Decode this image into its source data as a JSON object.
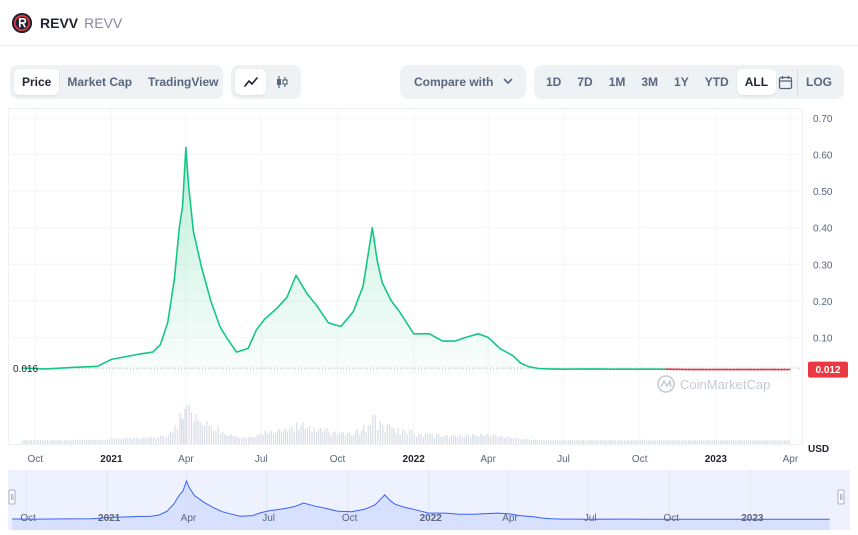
{
  "header": {
    "name": "REVV",
    "symbol": "REVV"
  },
  "tabs": [
    {
      "label": "Price",
      "active": true
    },
    {
      "label": "Market Cap",
      "active": false
    },
    {
      "label": "TradingView",
      "active": false
    }
  ],
  "chart_types": [
    {
      "icon": "line-chart-icon",
      "active": true
    },
    {
      "icon": "candlestick-icon",
      "active": false
    }
  ],
  "compare": {
    "label": "Compare with"
  },
  "ranges": [
    {
      "label": "1D",
      "active": false
    },
    {
      "label": "7D",
      "active": false
    },
    {
      "label": "1M",
      "active": false
    },
    {
      "label": "3M",
      "active": false
    },
    {
      "label": "1Y",
      "active": false
    },
    {
      "label": "YTD",
      "active": false
    },
    {
      "label": "ALL",
      "active": true
    }
  ],
  "log_label": "LOG",
  "colors": {
    "up": "#16c784",
    "down": "#ea3943",
    "nav": "#3861fb",
    "text": "#222531",
    "muted": "#58667e"
  },
  "chart_data": {
    "type": "line",
    "watermark": "CoinMarketCap",
    "y_ticks": [
      "0.70",
      "0.60",
      "0.50",
      "0.40",
      "0.30",
      "0.20",
      "0.10"
    ],
    "ylim": [
      0,
      0.7
    ],
    "x_ticks": [
      "Oct",
      "2021",
      "Apr",
      "Jul",
      "Oct",
      "2022",
      "Apr",
      "Jul",
      "Oct",
      "2023",
      "Apr"
    ],
    "x_ticks_bold": [
      "2021",
      "2022",
      "2023"
    ],
    "nav_ticks": [
      "Oct",
      "2021",
      "Apr",
      "Jul",
      "Oct",
      "2022",
      "Apr",
      "Jul",
      "Oct",
      "2023"
    ],
    "start_price_label": "0.016",
    "current_price_label": "0.012",
    "currency_label": "USD",
    "series": [
      {
        "x": [
          "2020-09",
          "2020-10",
          "2020-11",
          "2020-12",
          "2021-01-01",
          "2021-01-20",
          "2021-02-05",
          "2021-02-20",
          "2021-03-01",
          "2021-03-10",
          "2021-03-18",
          "2021-03-24",
          "2021-03-28",
          "2021-04-01",
          "2021-04-04",
          "2021-04-10",
          "2021-04-20",
          "2021-05-01",
          "2021-05-12",
          "2021-05-20",
          "2021-06-01",
          "2021-06-15",
          "2021-06-25",
          "2021-07-05",
          "2021-07-20",
          "2021-08-01",
          "2021-08-12",
          "2021-08-25",
          "2021-09-05",
          "2021-09-20",
          "2021-10-05",
          "2021-10-20",
          "2021-11-01",
          "2021-11-12",
          "2021-11-18",
          "2021-11-24",
          "2021-12-05",
          "2021-12-15",
          "2022-01-01",
          "2022-01-20",
          "2022-02-05",
          "2022-02-20",
          "2022-03-05",
          "2022-03-20",
          "2022-04-01",
          "2022-04-15",
          "2022-05-01",
          "2022-05-10",
          "2022-05-20",
          "2022-06-01",
          "2022-06-15",
          "2022-07-01",
          "2022-08-01",
          "2022-09-01",
          "2022-10-01",
          "2022-11-01",
          "2022-12-01",
          "2023-01-01",
          "2023-02-01",
          "2023-03-01",
          "2023-04-01"
        ],
        "values": [
          0.016,
          0.014,
          0.018,
          0.021,
          0.04,
          0.048,
          0.055,
          0.06,
          0.08,
          0.14,
          0.26,
          0.4,
          0.46,
          0.62,
          0.52,
          0.39,
          0.29,
          0.2,
          0.13,
          0.1,
          0.06,
          0.07,
          0.12,
          0.15,
          0.18,
          0.21,
          0.27,
          0.22,
          0.19,
          0.14,
          0.13,
          0.17,
          0.24,
          0.4,
          0.31,
          0.25,
          0.2,
          0.17,
          0.11,
          0.11,
          0.09,
          0.09,
          0.1,
          0.11,
          0.1,
          0.07,
          0.05,
          0.03,
          0.02,
          0.015,
          0.014,
          0.013,
          0.014,
          0.013,
          0.013,
          0.013,
          0.012,
          0.012,
          0.012,
          0.012,
          0.012
        ]
      }
    ]
  }
}
